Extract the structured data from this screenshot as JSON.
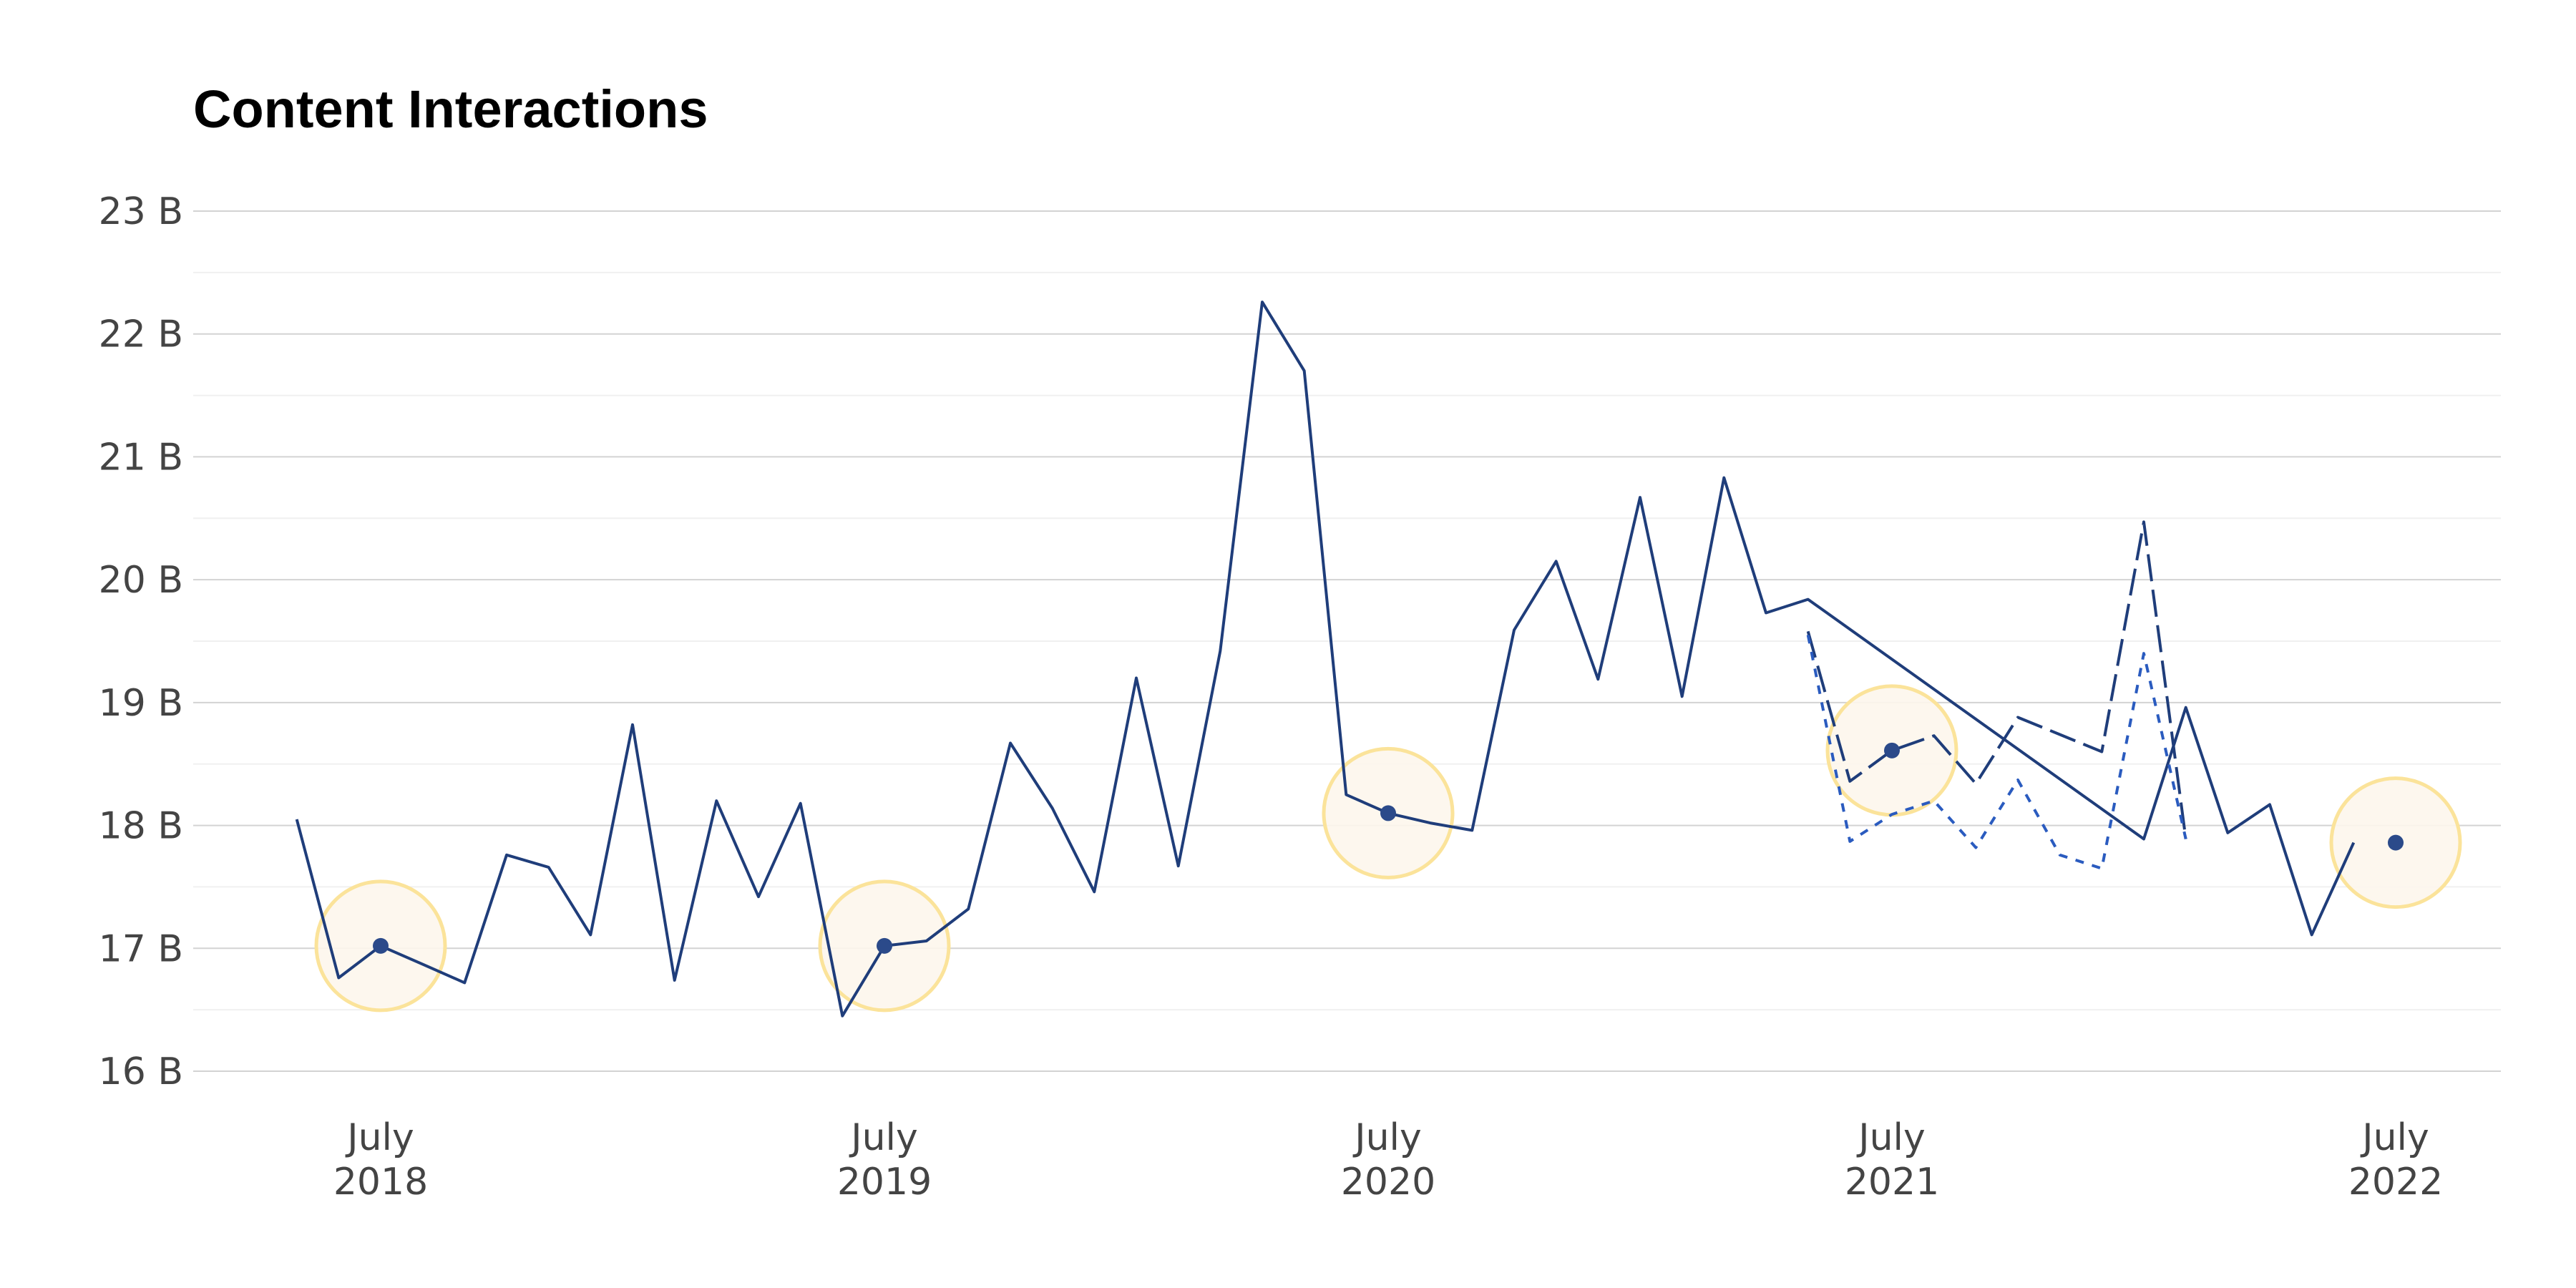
{
  "chart_data": {
    "type": "line",
    "title": "Content Interactions",
    "xlabel": "",
    "ylabel": "",
    "y_unit_suffix": " B",
    "ylim": [
      16,
      23
    ],
    "y_ticks": [
      16,
      17,
      18,
      19,
      20,
      21,
      22,
      23
    ],
    "y_tick_labels": [
      "16 B",
      "17 B",
      "18 B",
      "19 B",
      "20 B",
      "21 B",
      "22 B",
      "23 B"
    ],
    "grid": true,
    "x_ticks": [
      {
        "date": "2018-07",
        "line1": "July",
        "line2": "2018"
      },
      {
        "date": "2019-07",
        "line1": "July",
        "line2": "2019"
      },
      {
        "date": "2020-07",
        "line1": "July",
        "line2": "2020"
      },
      {
        "date": "2021-07",
        "line1": "July",
        "line2": "2021"
      },
      {
        "date": "2022-07",
        "line1": "July",
        "line2": "2022"
      }
    ],
    "series": [
      {
        "style": "solid",
        "color": "#1f3d7a",
        "points": [
          [
            "2018-05",
            18.05
          ],
          [
            "2018-06",
            16.76
          ],
          [
            "2018-07",
            17.02
          ],
          [
            "2018-08",
            16.87
          ],
          [
            "2018-09",
            16.72
          ],
          [
            "2018-10",
            17.76
          ],
          [
            "2018-11",
            17.66
          ],
          [
            "2018-12",
            17.11
          ],
          [
            "2019-01",
            18.82
          ],
          [
            "2019-02",
            16.74
          ],
          [
            "2019-03",
            18.2
          ],
          [
            "2019-04",
            17.42
          ],
          [
            "2019-05",
            18.18
          ],
          [
            "2019-06",
            16.45
          ],
          [
            "2019-07",
            17.02
          ],
          [
            "2019-08",
            17.06
          ],
          [
            "2019-09",
            17.32
          ],
          [
            "2019-10",
            18.67
          ],
          [
            "2019-11",
            18.14
          ],
          [
            "2019-12",
            17.46
          ],
          [
            "2020-01",
            19.2
          ],
          [
            "2020-02",
            17.67
          ],
          [
            "2020-03",
            19.42
          ],
          [
            "2020-04",
            22.26
          ],
          [
            "2020-05",
            21.7
          ],
          [
            "2020-06",
            18.25
          ],
          [
            "2020-07",
            18.1
          ],
          [
            "2020-08",
            18.02
          ],
          [
            "2020-09",
            17.96
          ],
          [
            "2020-10",
            19.59
          ],
          [
            "2020-11",
            20.15
          ],
          [
            "2020-12",
            19.19
          ],
          [
            "2021-01",
            20.67
          ],
          [
            "2021-02",
            19.05
          ],
          [
            "2021-03",
            20.83
          ],
          [
            "2021-04",
            19.73
          ],
          [
            "2021-05",
            19.84
          ],
          [
            "2022-01",
            17.89
          ],
          [
            "2022-02",
            18.96
          ],
          [
            "2022-03",
            17.94
          ],
          [
            "2022-04",
            18.17
          ],
          [
            "2022-05",
            17.11
          ],
          [
            "2022-06",
            17.86
          ]
        ]
      },
      {
        "style": "dashed",
        "color": "#1f3d7a",
        "points": [
          [
            "2021-05",
            19.58
          ],
          [
            "2021-06",
            18.36
          ],
          [
            "2021-07",
            18.61
          ],
          [
            "2021-08",
            18.73
          ],
          [
            "2021-09",
            18.34
          ],
          [
            "2021-10",
            18.88
          ],
          [
            "2021-11",
            18.74
          ],
          [
            "2021-12",
            18.6
          ],
          [
            "2022-01",
            20.47
          ],
          [
            "2022-02",
            17.89
          ]
        ]
      },
      {
        "style": "dotted",
        "color": "#2a5bbf",
        "points": [
          [
            "2021-05",
            19.55
          ],
          [
            "2021-06",
            17.87
          ],
          [
            "2021-07",
            18.09
          ],
          [
            "2021-08",
            18.2
          ],
          [
            "2021-09",
            17.82
          ],
          [
            "2021-10",
            18.37
          ],
          [
            "2021-11",
            17.76
          ],
          [
            "2021-12",
            17.65
          ],
          [
            "2022-01",
            19.4
          ],
          [
            "2022-02",
            17.89
          ]
        ]
      }
    ],
    "highlights": [
      {
        "date": "2018-07",
        "value": 17.02
      },
      {
        "date": "2019-07",
        "value": 17.02
      },
      {
        "date": "2020-07",
        "value": 18.1
      },
      {
        "date": "2021-07",
        "value": 18.61
      },
      {
        "date": "2022-07",
        "value": 17.86
      }
    ],
    "colors": {
      "line": "#1f3d7a",
      "line_dotted": "#2a5bbf",
      "highlight_fill": "#fdf6ec",
      "highlight_stroke": "#fbe39a",
      "marker": "#2b4a8a"
    }
  }
}
